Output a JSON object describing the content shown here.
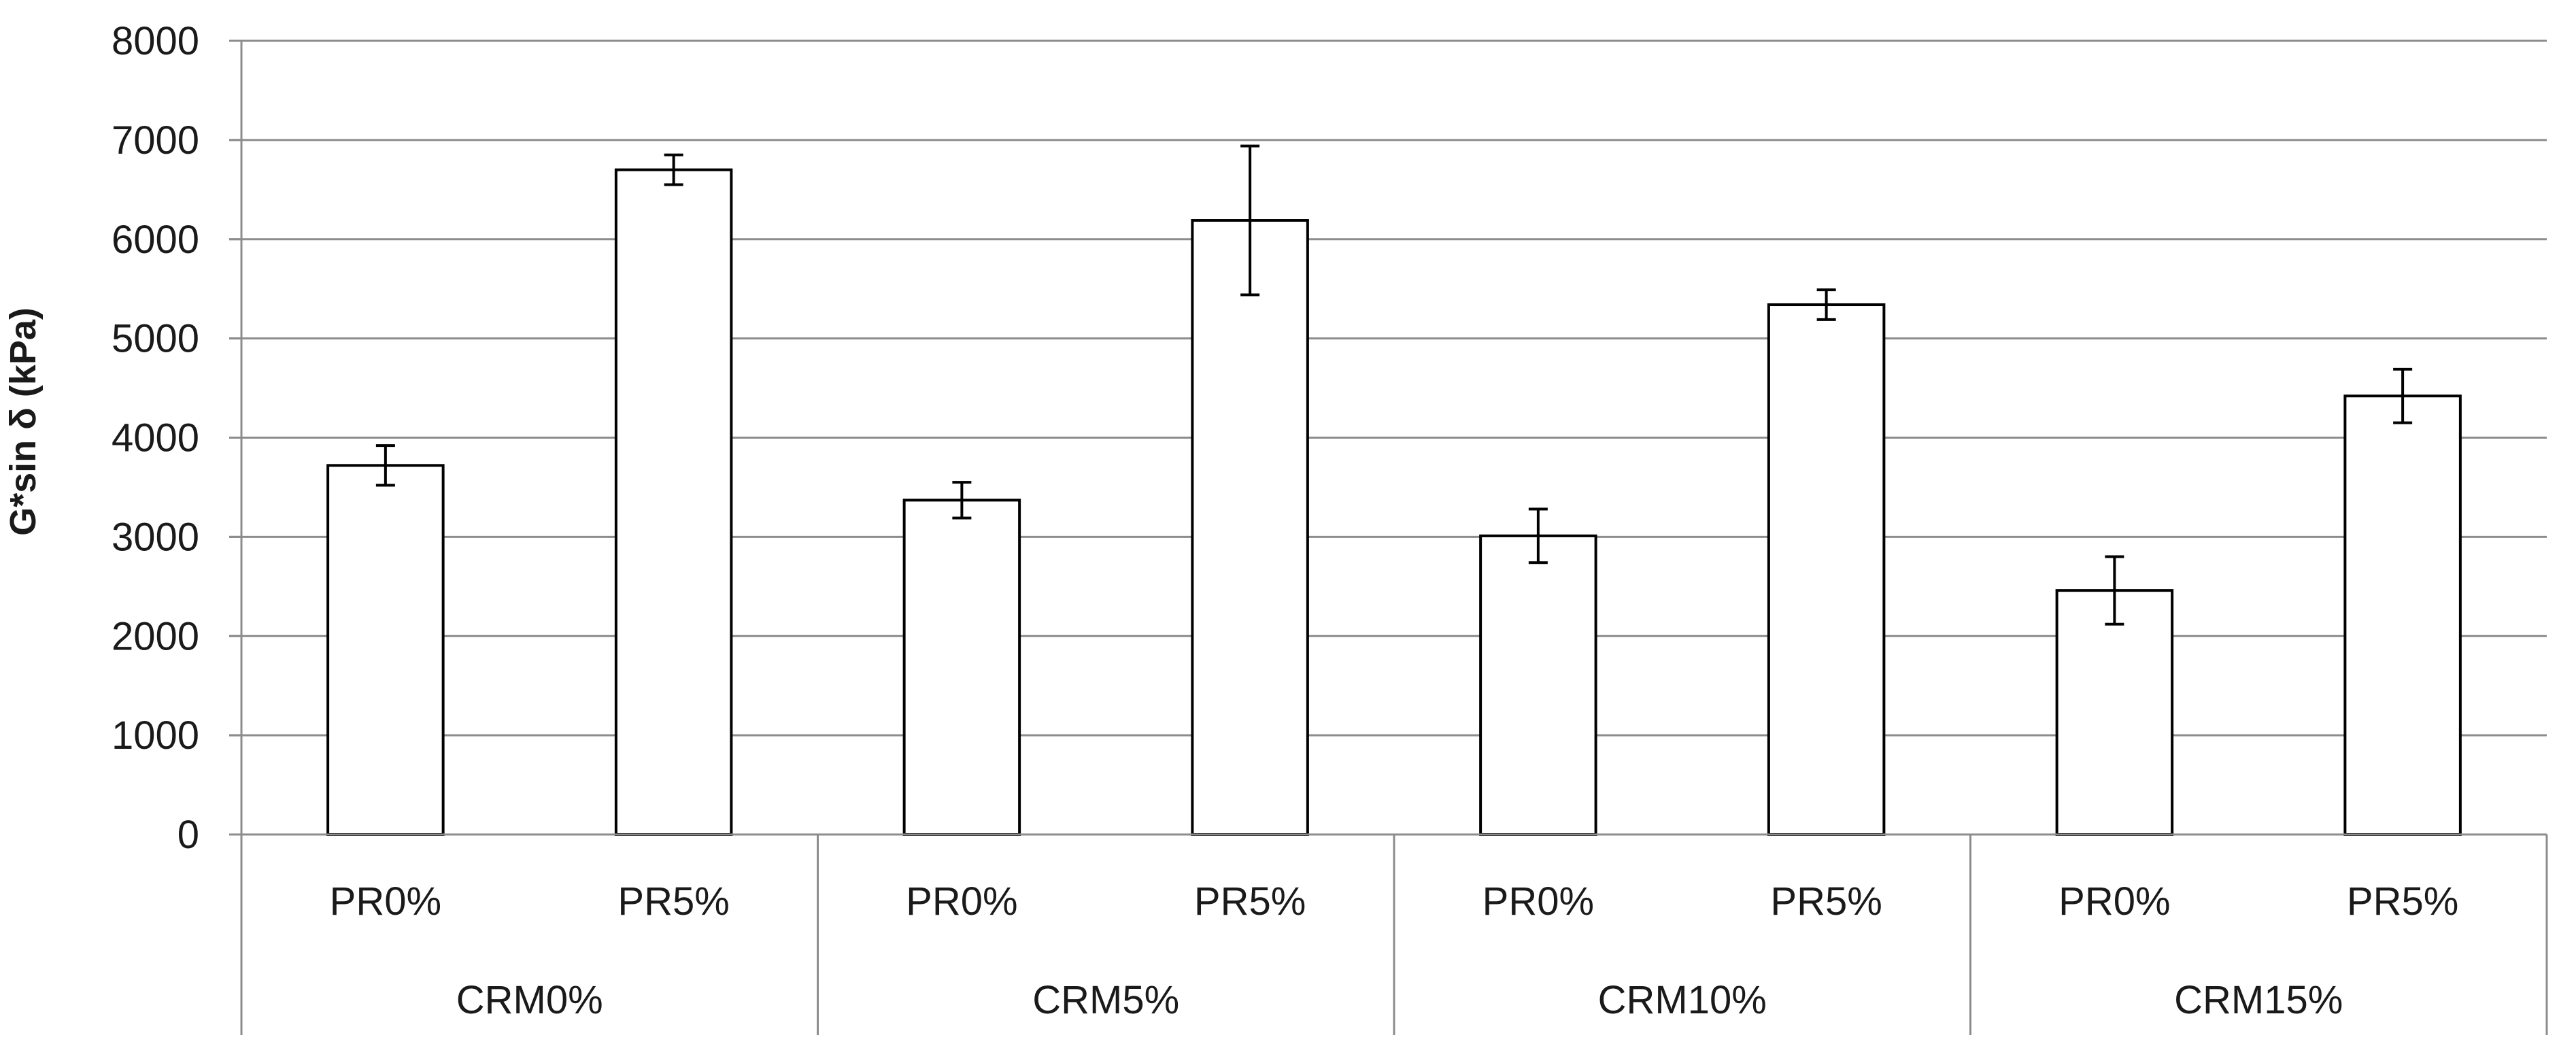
{
  "chart_data": {
    "type": "bar",
    "ylabel": "G*sin δ (kPa)",
    "ylim": [
      0,
      8000
    ],
    "yticks": [
      0,
      1000,
      2000,
      3000,
      4000,
      5000,
      6000,
      7000,
      8000
    ],
    "grid": true,
    "groups": [
      "CRM0%",
      "CRM5%",
      "CRM10%",
      "CRM15%"
    ],
    "categories": [
      "PR0%",
      "PR5%",
      "PR0%",
      "PR5%",
      "PR0%",
      "PR5%",
      "PR0%",
      "PR5%"
    ],
    "values": [
      3720,
      6700,
      3370,
      6190,
      3010,
      5340,
      2460,
      4420
    ],
    "error": [
      200,
      150,
      180,
      750,
      270,
      150,
      340,
      270
    ],
    "colors": {
      "bar_fill": "#ffffff",
      "bar_stroke": "#000000",
      "grid": "#8c8c8c",
      "axis": "#8c8c8c"
    }
  }
}
